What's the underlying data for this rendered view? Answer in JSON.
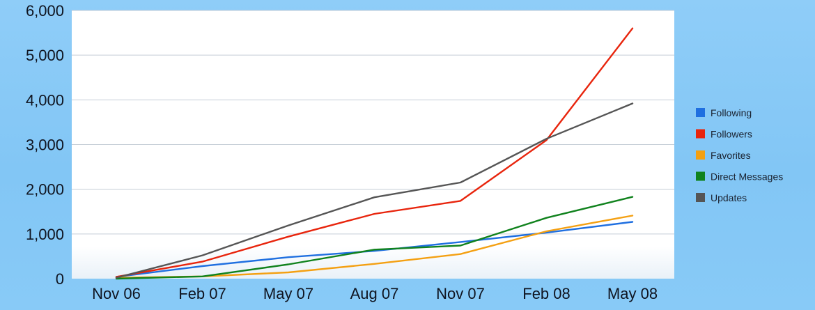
{
  "chart_data": {
    "type": "line",
    "title": "",
    "xlabel": "",
    "ylabel": "",
    "categories": [
      "Nov 06",
      "Feb 07",
      "May 07",
      "Aug 07",
      "Nov 07",
      "Feb 08",
      "May 08"
    ],
    "ylim": [
      0,
      6000
    ],
    "yticks": [
      0,
      1000,
      2000,
      3000,
      4000,
      5000,
      6000
    ],
    "ytick_labels": [
      "0",
      "1,000",
      "2,000",
      "3,000",
      "4,000",
      "5,000",
      "6,000"
    ],
    "grid": true,
    "legend_position": "right",
    "series": [
      {
        "name": "Following",
        "color": "#1f6fe0",
        "values": [
          40,
          280,
          480,
          620,
          820,
          1030,
          1270
        ]
      },
      {
        "name": "Followers",
        "color": "#e8240c",
        "values": [
          40,
          380,
          940,
          1450,
          1740,
          3100,
          5600
        ]
      },
      {
        "name": "Favorites",
        "color": "#f4a012",
        "values": [
          20,
          50,
          140,
          330,
          550,
          1060,
          1410
        ]
      },
      {
        "name": "Direct Messages",
        "color": "#10821d",
        "values": [
          0,
          50,
          320,
          650,
          740,
          1360,
          1830
        ]
      },
      {
        "name": "Updates",
        "color": "#555555",
        "values": [
          20,
          520,
          1190,
          1820,
          2150,
          3130,
          3920
        ]
      }
    ]
  }
}
